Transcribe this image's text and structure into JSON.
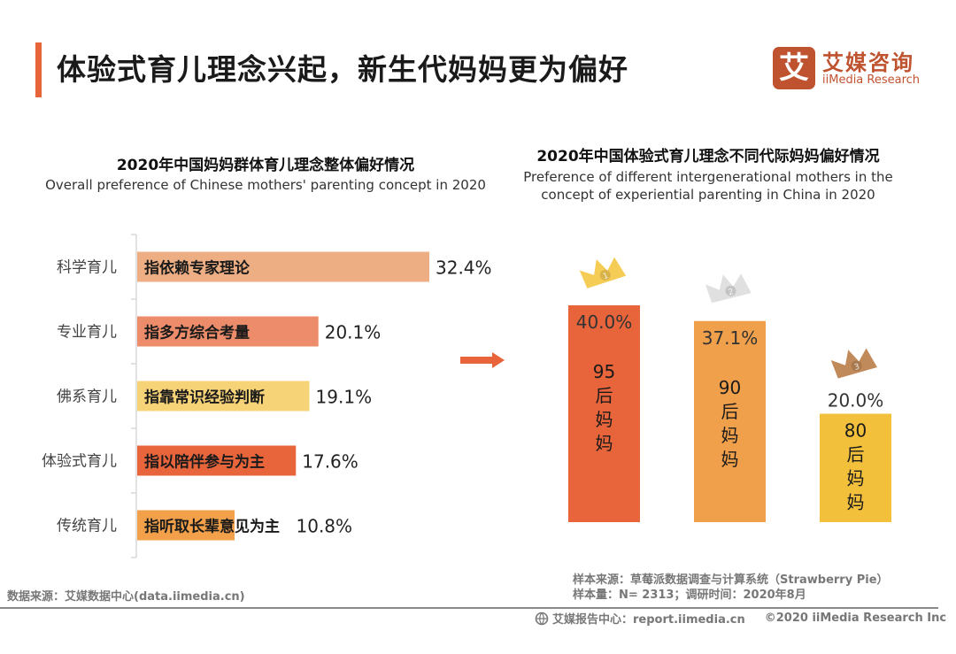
{
  "header": {
    "title": "体验式育儿理念兴起，新生代妈妈更为偏好",
    "logo": {
      "icon_char": "艾",
      "cn": "艾媒咨询",
      "en": "iiMedia Research"
    }
  },
  "colors": {
    "accent": "#e8653c",
    "brand": "#c0532f",
    "bar_science": "#ecae82",
    "bar_professional": "#ec8c6a",
    "bar_buddhist": "#f7d378",
    "bar_experiential": "#e8653c",
    "bar_traditional": "#f2a14a",
    "gen_95": "#e8653c",
    "gen_90": "#f0a04b",
    "gen_80": "#f3c03c",
    "crown_gold": "#f5cc55",
    "crown_silver": "#e0e0e0",
    "crown_bronze": "#c08a5a"
  },
  "chart_data": [
    {
      "type": "bar",
      "orientation": "horizontal",
      "title": "2020年中国妈妈群体育儿理念整体偏好情况",
      "subtitle": "Overall preference of Chinese mothers' parenting concept in 2020",
      "categories": [
        "科学育儿",
        "专业育儿",
        "佛系育儿",
        "体验式育儿",
        "传统育儿"
      ],
      "descriptions": [
        "指依赖专家理论",
        "指多方综合考量",
        "指靠常识经验判断",
        "指以陪伴参与为主",
        "指听取长辈意见为主"
      ],
      "values": [
        32.4,
        20.1,
        19.1,
        17.6,
        10.8
      ],
      "value_labels": [
        "32.4%",
        "20.1%",
        "19.1%",
        "17.6%",
        "10.8%"
      ],
      "unit": "%",
      "xlim": [
        0,
        32.4
      ],
      "grid": false,
      "legend": "none"
    },
    {
      "type": "bar",
      "orientation": "vertical",
      "title": "2020年中国体验式育儿理念不同代际妈妈偏好情况",
      "subtitle": "Preference of different intergenerational mothers in the concept of experiential parenting in China in 2020",
      "categories": [
        "95后妈妈",
        "90后妈妈",
        "80后妈妈"
      ],
      "category_lines": [
        [
          "95",
          "后",
          "妈",
          "妈"
        ],
        [
          "90",
          "后",
          "妈",
          "妈"
        ],
        [
          "80",
          "后",
          "妈",
          "妈"
        ]
      ],
      "values": [
        40.0,
        37.1,
        20.0
      ],
      "value_labels": [
        "40.0%",
        "37.1%",
        "20.0%"
      ],
      "ranks": [
        1,
        2,
        3
      ],
      "unit": "%",
      "ylim": [
        0,
        40
      ],
      "grid": false,
      "legend": "none"
    }
  ],
  "titles": {
    "left_cn": "2020年中国妈妈群体育儿理念整体偏好情况",
    "left_en": "Overall preference of Chinese mothers' parenting concept in 2020",
    "right_cn": "2020年中国体验式育儿理念不同代际妈妈偏好情况",
    "right_en": "Preference of different intergenerational mothers in the concept of experiential parenting in China in 2020"
  },
  "footer": {
    "data_source": "数据来源：艾媒数据中心(data.iimedia.cn)",
    "sample_source": "样本来源：草莓派数据调查与计算系统（Strawberry Pie）",
    "sample_size": "样本量：N= 2313；调研时间：2020年8月",
    "report_center": "艾媒报告中心：report.iimedia.cn",
    "copyright": "©2020  iiMedia Research  Inc"
  }
}
